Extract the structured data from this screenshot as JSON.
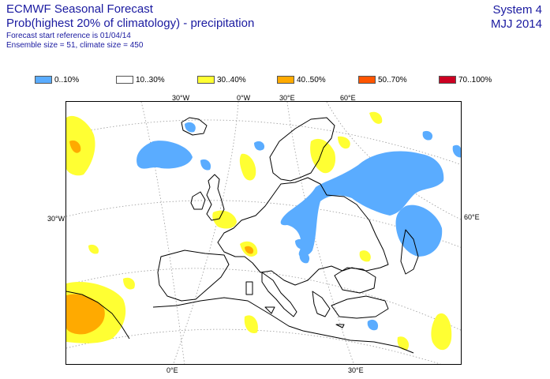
{
  "header": {
    "title": "ECMWF Seasonal Forecast",
    "subtitle": "Prob(highest 20% of climatology) - precipitation",
    "start_ref": "Forecast start reference is 01/04/14",
    "ensemble": "Ensemble size = 51, climate size = 450",
    "system": "System 4",
    "season": "MJJ 2014"
  },
  "legend": [
    {
      "label": "0..10%",
      "color": "#5aacff"
    },
    {
      "label": "10..30%",
      "color": "#ffffff"
    },
    {
      "label": "30..40%",
      "color": "#ffff33"
    },
    {
      "label": "40..50%",
      "color": "#ffaa00"
    },
    {
      "label": "50..70%",
      "color": "#ff5500"
    },
    {
      "label": "70..100%",
      "color": "#cc0022"
    }
  ],
  "grid_labels": {
    "top": [
      "30°W",
      "0°W",
      "30°E",
      "60°E"
    ],
    "left": [
      "30°W"
    ],
    "right": [
      "60°E"
    ],
    "bottom": [
      "0°E",
      "30°E"
    ]
  }
}
